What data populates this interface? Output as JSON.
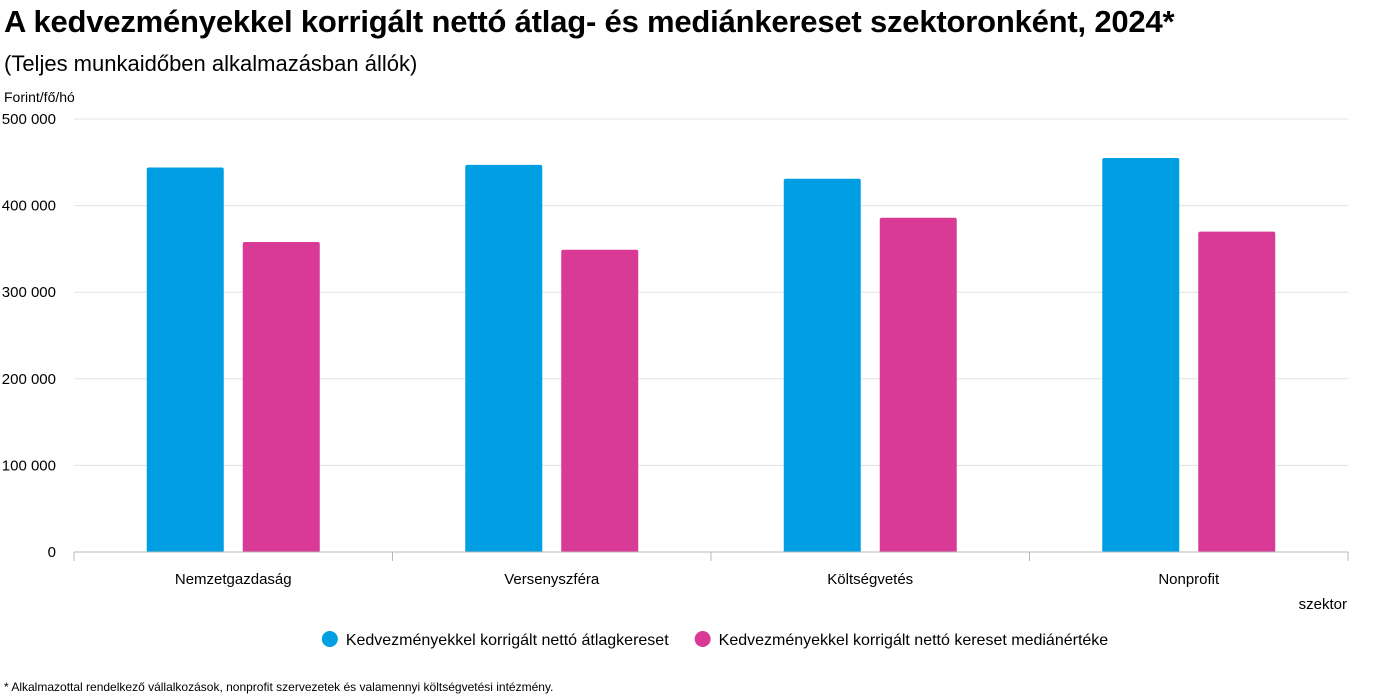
{
  "chart_data": {
    "type": "bar",
    "title": "A kedvezményekkel korrigált nettó átlag- és mediánkereset szektoronként, 2024*",
    "subtitle": "(Teljes munkaidőben alkalmazásban állók)",
    "ylabel": "Forint/fő/hó",
    "xlabel": "szektor",
    "ylim": [
      0,
      500000
    ],
    "yticks": [
      0,
      100000,
      200000,
      300000,
      400000,
      500000
    ],
    "ytick_labels": [
      "0",
      "100 000",
      "200 000",
      "300 000",
      "400 000",
      "500 000"
    ],
    "categories": [
      "Nemzetgazdaság",
      "Versenyszféra",
      "Költségvetés",
      "Nonprofit"
    ],
    "series": [
      {
        "name": "Kedvezményekkel korrigált nettó átlagkereset",
        "color": "#009fe3",
        "values": [
          444000,
          447000,
          431000,
          455000
        ]
      },
      {
        "name": "Kedvezményekkel korrigált nettó kereset mediánértéke",
        "color": "#d93a96",
        "values": [
          358000,
          349000,
          386000,
          370000
        ]
      }
    ],
    "grid": true,
    "legend_position": "bottom-center"
  },
  "footnote": "* Alkalmazottal rendelkező vállalkozások, nonprofit szervezetek és valamennyi költségvetési intézmény."
}
